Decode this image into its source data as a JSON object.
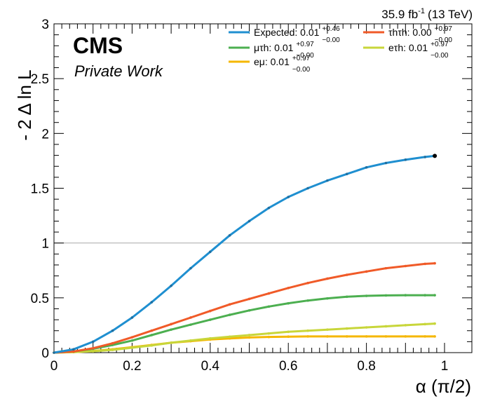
{
  "header": {
    "lumi": "35.9 fb",
    "lumi_sup": "-1",
    "energy": "(13 TeV)",
    "experiment": "CMS",
    "status": "Private Work"
  },
  "chart_data": {
    "type": "line",
    "xlabel": "α (π/2)",
    "ylabel": "- 2 Δ ln L",
    "xlim": [
      0,
      1.07
    ],
    "ylim": [
      0,
      3
    ],
    "x_ticks": [
      "0",
      "0.2",
      "0.4",
      "0.6",
      "0.8",
      "1"
    ],
    "y_ticks": [
      "0",
      "0.5",
      "1",
      "1.5",
      "2",
      "2.5",
      "3"
    ],
    "reference_line_y": 1,
    "legend_position": "top-right",
    "x": [
      0,
      0.05,
      0.1,
      0.15,
      0.2,
      0.25,
      0.3,
      0.35,
      0.4,
      0.45,
      0.5,
      0.55,
      0.6,
      0.65,
      0.7,
      0.75,
      0.8,
      0.85,
      0.9,
      0.95,
      0.975
    ],
    "series": [
      {
        "name": "Expected",
        "label_main": "Expected: 0.01",
        "err_up": "+0.46",
        "err_down": "−0.00",
        "color": "#1f8fd0",
        "values": [
          0,
          0.03,
          0.1,
          0.2,
          0.32,
          0.46,
          0.61,
          0.77,
          0.92,
          1.07,
          1.2,
          1.32,
          1.42,
          1.5,
          1.57,
          1.63,
          1.69,
          1.73,
          1.76,
          1.785,
          1.795
        ]
      },
      {
        "name": "τhτh",
        "label_main": "τhτh: 0.00",
        "err_up": "+0.97",
        "err_down": "−0.00",
        "color": "#f05a28",
        "values": [
          0,
          0.01,
          0.04,
          0.085,
          0.14,
          0.2,
          0.26,
          0.32,
          0.38,
          0.44,
          0.49,
          0.54,
          0.59,
          0.635,
          0.675,
          0.71,
          0.74,
          0.77,
          0.79,
          0.81,
          0.815
        ]
      },
      {
        "name": "μτh",
        "label_main": "μτh: 0.01",
        "err_up": "+0.97",
        "err_down": "−0.00",
        "color": "#4caf50",
        "values": [
          0,
          0.01,
          0.035,
          0.07,
          0.11,
          0.16,
          0.21,
          0.255,
          0.3,
          0.345,
          0.385,
          0.42,
          0.45,
          0.475,
          0.495,
          0.51,
          0.518,
          0.522,
          0.524,
          0.524,
          0.524
        ]
      },
      {
        "name": "eτh",
        "label_main": "eτh: 0.01",
        "err_up": "+0.97",
        "err_down": "−0.00",
        "color": "#c8d63a",
        "values": [
          0,
          0.005,
          0.012,
          0.025,
          0.045,
          0.065,
          0.09,
          0.11,
          0.13,
          0.145,
          0.16,
          0.175,
          0.19,
          0.2,
          0.21,
          0.22,
          0.23,
          0.24,
          0.25,
          0.26,
          0.265
        ]
      },
      {
        "name": "eμ",
        "label_main": "eμ: 0.01",
        "err_up": "+0.97",
        "err_down": "−0.00",
        "color": "#f5b700",
        "values": [
          0,
          0.005,
          0.015,
          0.03,
          0.05,
          0.07,
          0.09,
          0.105,
          0.12,
          0.13,
          0.138,
          0.143,
          0.146,
          0.148,
          0.148,
          0.148,
          0.148,
          0.148,
          0.148,
          0.148,
          0.148
        ]
      }
    ]
  }
}
